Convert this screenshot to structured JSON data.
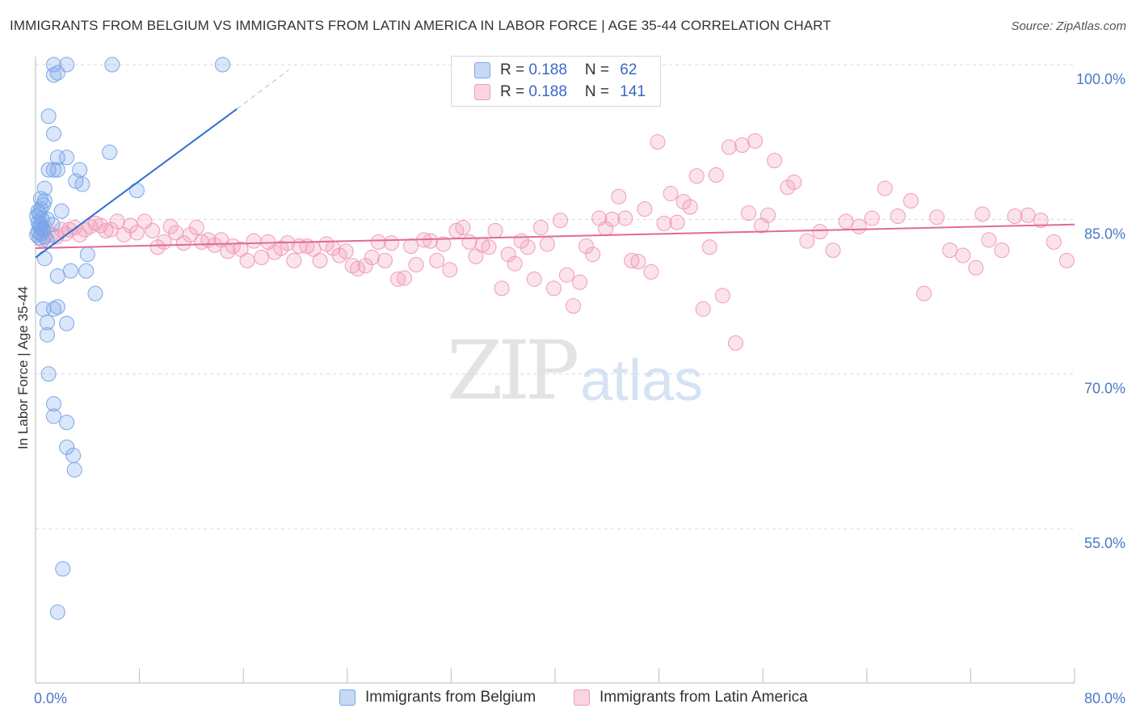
{
  "header": {
    "title": "IMMIGRANTS FROM BELGIUM VS IMMIGRANTS FROM LATIN AMERICA IN LABOR FORCE | AGE 35-44 CORRELATION CHART",
    "source": "Source: ZipAtlas.com"
  },
  "watermark": {
    "zip": "ZIP",
    "atlas": "atlas"
  },
  "legend": {
    "r_label": "R = ",
    "n_label": "N = ",
    "items": [
      {
        "r": "0.188",
        "n": "62",
        "color": "#7aa6e8"
      },
      {
        "r": "0.188",
        "n": "141",
        "color": "#f29ab8"
      }
    ]
  },
  "bottom_legend": [
    {
      "label": "Immigrants from Belgium",
      "color": "#7aa6e8"
    },
    {
      "label": "Immigrants from Latin America",
      "color": "#f29ab8"
    }
  ],
  "chart_data": {
    "type": "scatter",
    "title": "IMMIGRANTS FROM BELGIUM VS IMMIGRANTS FROM LATIN AMERICA IN LABOR FORCE | AGE 35-44 CORRELATION CHART",
    "xlabel": "",
    "ylabel": "In Labor Force | Age 35-44",
    "xlim": [
      0,
      80
    ],
    "ylim": [
      42,
      102
    ],
    "x_tick_labels": [
      "0.0%",
      "80.0%"
    ],
    "y_ticks": [
      55,
      70,
      85,
      100
    ],
    "y_tick_labels": [
      "55.0%",
      "70.0%",
      "85.0%",
      "100.0%"
    ],
    "grid": "horizontal dashed",
    "series": [
      {
        "name": "Immigrants from Belgium",
        "color": "#7aa6e8",
        "line_color": "#2f6fd0",
        "trend": {
          "x": [
            0.0,
            15.5
          ],
          "y": [
            81.3,
            95.7
          ],
          "dash_to": [
            19.5,
            99.5
          ]
        },
        "points": [
          [
            1.4,
            100.0
          ],
          [
            2.4,
            100.0
          ],
          [
            5.9,
            100.0
          ],
          [
            14.4,
            100.0
          ],
          [
            1.4,
            99.0
          ],
          [
            1.7,
            99.2
          ],
          [
            1.0,
            95.0
          ],
          [
            1.4,
            93.3
          ],
          [
            5.7,
            91.5
          ],
          [
            1.7,
            91.0
          ],
          [
            2.4,
            91.0
          ],
          [
            1.0,
            89.8
          ],
          [
            1.4,
            89.8
          ],
          [
            1.7,
            89.8
          ],
          [
            3.4,
            89.8
          ],
          [
            3.1,
            88.7
          ],
          [
            3.6,
            88.4
          ],
          [
            0.7,
            88.0
          ],
          [
            7.8,
            87.8
          ],
          [
            0.4,
            87.0
          ],
          [
            0.7,
            86.8
          ],
          [
            0.6,
            86.4
          ],
          [
            0.4,
            86.0
          ],
          [
            2.0,
            85.8
          ],
          [
            0.2,
            85.8
          ],
          [
            0.3,
            85.5
          ],
          [
            0.1,
            85.3
          ],
          [
            0.5,
            85.0
          ],
          [
            0.9,
            85.0
          ],
          [
            0.2,
            84.7
          ],
          [
            0.4,
            84.5
          ],
          [
            1.3,
            84.5
          ],
          [
            0.3,
            84.3
          ],
          [
            0.6,
            84.0
          ],
          [
            0.2,
            83.8
          ],
          [
            0.4,
            83.6
          ],
          [
            0.1,
            83.5
          ],
          [
            0.7,
            83.3
          ],
          [
            0.3,
            83.2
          ],
          [
            0.9,
            83.0
          ],
          [
            4.0,
            81.6
          ],
          [
            0.7,
            81.2
          ],
          [
            2.7,
            80.0
          ],
          [
            3.9,
            80.0
          ],
          [
            1.7,
            79.5
          ],
          [
            4.6,
            77.8
          ],
          [
            0.6,
            76.3
          ],
          [
            1.4,
            76.3
          ],
          [
            1.7,
            76.5
          ],
          [
            0.9,
            75.0
          ],
          [
            2.4,
            74.9
          ],
          [
            0.9,
            73.8
          ],
          [
            1.0,
            70.0
          ],
          [
            1.4,
            67.1
          ],
          [
            1.4,
            65.9
          ],
          [
            2.4,
            65.3
          ],
          [
            2.4,
            62.9
          ],
          [
            2.9,
            62.1
          ],
          [
            3.0,
            60.7
          ],
          [
            2.1,
            51.1
          ],
          [
            1.7,
            46.9
          ],
          [
            0.5,
            84.1
          ]
        ]
      },
      {
        "name": "Immigrants from Latin America",
        "color": "#f29ab8",
        "line_color": "#e0699a",
        "trend": {
          "x": [
            0.0,
            80.0
          ],
          "y": [
            82.2,
            84.5
          ]
        },
        "points": [
          [
            0.5,
            83.0
          ],
          [
            0.8,
            84.1
          ],
          [
            1.2,
            83.5
          ],
          [
            1.6,
            83.3
          ],
          [
            2.0,
            84.0
          ],
          [
            2.3,
            83.6
          ],
          [
            2.6,
            84.0
          ],
          [
            3.0,
            84.2
          ],
          [
            3.4,
            83.5
          ],
          [
            3.8,
            84.0
          ],
          [
            4.2,
            84.3
          ],
          [
            4.6,
            84.6
          ],
          [
            5.0,
            84.4
          ],
          [
            5.4,
            83.9
          ],
          [
            5.8,
            84.0
          ],
          [
            6.3,
            84.8
          ],
          [
            6.8,
            83.5
          ],
          [
            7.3,
            84.4
          ],
          [
            7.8,
            83.7
          ],
          [
            8.4,
            84.8
          ],
          [
            9.0,
            83.9
          ],
          [
            9.4,
            82.3
          ],
          [
            9.9,
            82.8
          ],
          [
            10.4,
            84.3
          ],
          [
            10.8,
            83.7
          ],
          [
            11.4,
            82.7
          ],
          [
            11.9,
            83.5
          ],
          [
            12.4,
            84.2
          ],
          [
            12.8,
            82.8
          ],
          [
            13.3,
            83.0
          ],
          [
            13.8,
            82.5
          ],
          [
            14.3,
            83.0
          ],
          [
            14.8,
            81.9
          ],
          [
            15.2,
            82.4
          ],
          [
            15.8,
            82.1
          ],
          [
            16.3,
            81.0
          ],
          [
            16.8,
            82.9
          ],
          [
            17.4,
            81.3
          ],
          [
            17.9,
            82.8
          ],
          [
            18.4,
            81.8
          ],
          [
            18.9,
            82.2
          ],
          [
            19.4,
            82.7
          ],
          [
            19.9,
            81.0
          ],
          [
            20.3,
            82.4
          ],
          [
            20.9,
            82.4
          ],
          [
            21.4,
            82.1
          ],
          [
            21.9,
            81.0
          ],
          [
            22.4,
            82.6
          ],
          [
            22.9,
            82.2
          ],
          [
            23.4,
            81.5
          ],
          [
            23.9,
            81.9
          ],
          [
            24.4,
            80.5
          ],
          [
            24.8,
            80.2
          ],
          [
            25.4,
            80.5
          ],
          [
            25.9,
            81.3
          ],
          [
            26.4,
            82.8
          ],
          [
            26.9,
            81.0
          ],
          [
            27.4,
            82.7
          ],
          [
            27.9,
            79.2
          ],
          [
            28.4,
            79.3
          ],
          [
            28.9,
            82.4
          ],
          [
            29.3,
            80.6
          ],
          [
            29.9,
            83.0
          ],
          [
            30.4,
            82.9
          ],
          [
            30.9,
            81.0
          ],
          [
            31.4,
            82.6
          ],
          [
            31.9,
            80.1
          ],
          [
            32.4,
            83.9
          ],
          [
            32.9,
            84.2
          ],
          [
            33.4,
            82.8
          ],
          [
            33.9,
            81.4
          ],
          [
            34.4,
            82.5
          ],
          [
            34.9,
            82.3
          ],
          [
            35.4,
            83.9
          ],
          [
            35.9,
            78.3
          ],
          [
            36.4,
            81.6
          ],
          [
            36.9,
            80.7
          ],
          [
            37.4,
            82.9
          ],
          [
            37.9,
            82.3
          ],
          [
            38.4,
            79.2
          ],
          [
            38.9,
            84.2
          ],
          [
            39.4,
            82.6
          ],
          [
            39.9,
            78.3
          ],
          [
            40.4,
            84.9
          ],
          [
            40.9,
            79.6
          ],
          [
            41.4,
            76.6
          ],
          [
            41.9,
            78.9
          ],
          [
            42.4,
            82.4
          ],
          [
            42.9,
            81.6
          ],
          [
            43.4,
            85.1
          ],
          [
            43.9,
            84.1
          ],
          [
            44.4,
            85.0
          ],
          [
            44.9,
            87.2
          ],
          [
            45.4,
            85.1
          ],
          [
            45.9,
            81.0
          ],
          [
            46.4,
            80.9
          ],
          [
            46.9,
            86.0
          ],
          [
            47.4,
            79.9
          ],
          [
            47.9,
            92.5
          ],
          [
            48.4,
            84.6
          ],
          [
            48.9,
            87.5
          ],
          [
            49.4,
            84.7
          ],
          [
            49.9,
            86.7
          ],
          [
            50.4,
            86.2
          ],
          [
            50.9,
            89.2
          ],
          [
            51.4,
            76.3
          ],
          [
            51.9,
            82.3
          ],
          [
            52.4,
            89.3
          ],
          [
            52.9,
            77.6
          ],
          [
            53.4,
            92.0
          ],
          [
            53.9,
            73.0
          ],
          [
            54.4,
            92.2
          ],
          [
            54.9,
            85.6
          ],
          [
            55.4,
            92.6
          ],
          [
            55.9,
            84.4
          ],
          [
            56.4,
            85.4
          ],
          [
            56.9,
            90.7
          ],
          [
            57.9,
            88.1
          ],
          [
            58.4,
            88.6
          ],
          [
            59.4,
            82.9
          ],
          [
            60.4,
            83.8
          ],
          [
            61.4,
            82.0
          ],
          [
            62.4,
            84.8
          ],
          [
            63.4,
            84.3
          ],
          [
            64.4,
            85.1
          ],
          [
            65.4,
            88.0
          ],
          [
            66.4,
            85.3
          ],
          [
            67.4,
            86.8
          ],
          [
            68.4,
            77.8
          ],
          [
            69.4,
            85.2
          ],
          [
            70.4,
            82.0
          ],
          [
            71.4,
            81.5
          ],
          [
            72.4,
            80.3
          ],
          [
            73.4,
            83.0
          ],
          [
            74.4,
            82.0
          ],
          [
            75.4,
            85.3
          ],
          [
            76.4,
            85.4
          ],
          [
            77.4,
            84.9
          ],
          [
            78.4,
            82.8
          ],
          [
            79.4,
            81.0
          ],
          [
            72.9,
            85.5
          ]
        ]
      }
    ]
  }
}
